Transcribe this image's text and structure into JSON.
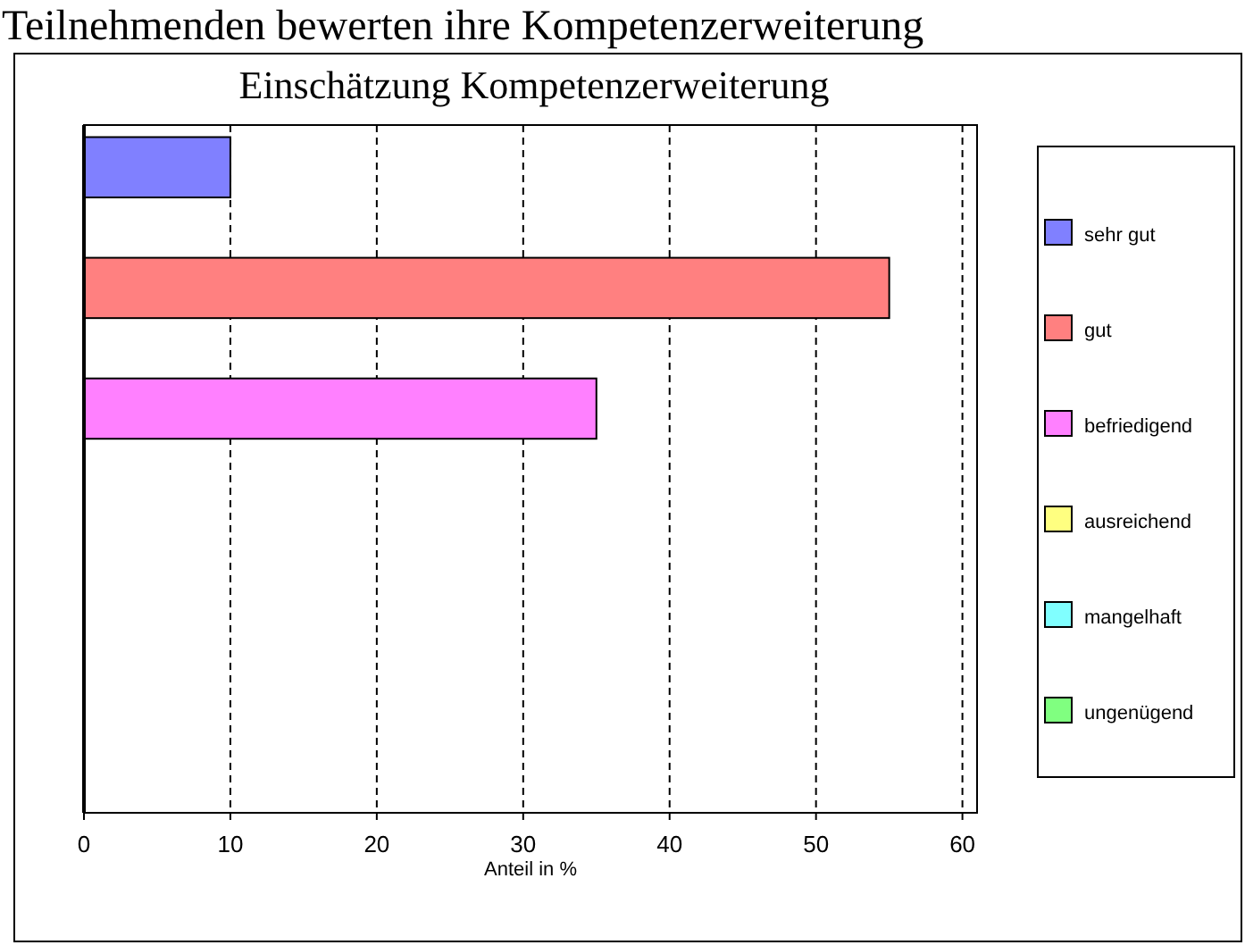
{
  "chart_data": {
    "type": "bar",
    "orientation": "horizontal",
    "subtitle": "Teilnehmenden bewerten ihre Kompetenzerweiterung",
    "title": "Einschätzung Kompetenzerweiterung",
    "xlabel": "Anteil in %",
    "categories": [
      null,
      null,
      null,
      null,
      null,
      null
    ],
    "series": [
      {
        "name": "sehr gut",
        "color": "#8080ff",
        "values": [
          10,
          null,
          null,
          null,
          null,
          null
        ]
      },
      {
        "name": "gut",
        "color": "#ff8080",
        "values": [
          null,
          55,
          null,
          null,
          null,
          null
        ]
      },
      {
        "name": "befriedigend",
        "color": "#ff80ff",
        "values": [
          null,
          null,
          35,
          null,
          null,
          null
        ]
      },
      {
        "name": "ausreichend",
        "color": "#ffff80",
        "values": [
          null,
          null,
          null,
          0,
          null,
          null
        ]
      },
      {
        "name": "mangelhaft",
        "color": "#80ffff",
        "values": [
          null,
          null,
          null,
          null,
          0,
          null
        ]
      },
      {
        "name": "ungenügend",
        "color": "#80ff80",
        "values": [
          null,
          null,
          null,
          null,
          null,
          0
        ]
      }
    ],
    "xlim": [
      0,
      61
    ],
    "xticks": [
      0,
      10,
      20,
      30,
      40,
      50,
      60
    ],
    "grid": "x",
    "legend": "right"
  }
}
